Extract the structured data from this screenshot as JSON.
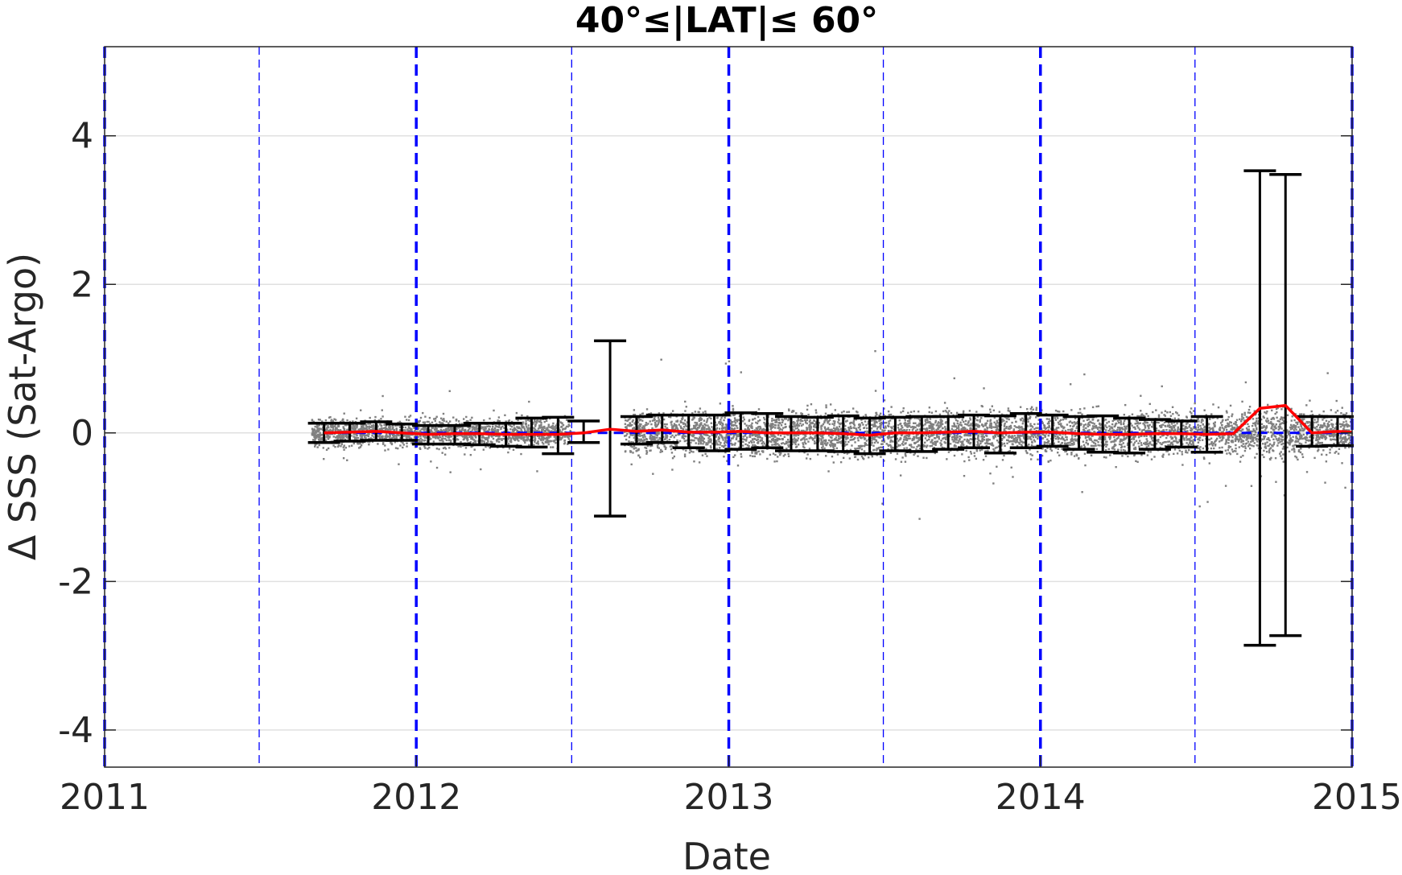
{
  "chart_data": {
    "type": "scatter",
    "title": "40°≤|LAT|≤ 60°",
    "xlabel": "Date",
    "ylabel": "Δ SSS (Sat-Argo)",
    "xlim": [
      "2011-01-01",
      "2015-01-01"
    ],
    "ylim": [
      -4.5,
      5.2
    ],
    "x_ticks": [
      "2011",
      "2012",
      "2013",
      "2014",
      "2015"
    ],
    "y_ticks": [
      -4,
      -2,
      0,
      2,
      4
    ],
    "y_tick_labels": [
      "-4",
      "-2",
      "0",
      "2",
      "4"
    ],
    "grid": "horizontal",
    "colors": {
      "scatter": "#808080",
      "mean_line": "#ff0000",
      "error_bars": "#000000",
      "year_lines": "#0000ff",
      "zero_line": "#0000ff",
      "grid": "#e0e0e0",
      "axes": "#262626"
    },
    "reference_lines": {
      "zero_line_y": 0,
      "year_boundaries": [
        "2011-01-01",
        "2012-01-01",
        "2013-01-01",
        "2014-01-01",
        "2015-01-01"
      ],
      "half_year_lines": [
        "2011-07-01",
        "2012-07-01",
        "2013-07-01",
        "2014-07-01"
      ]
    },
    "scatter_description_ranges": [
      {
        "from": "2011-09-01",
        "to": "2012-06-30",
        "spread": 0.35
      },
      {
        "from": "2012-09-01",
        "to": "2014-09-10",
        "spread": 0.55
      },
      {
        "from": "2014-09-10",
        "to": "2014-11-01",
        "spread": 0.6
      },
      {
        "from": "2014-11-01",
        "to": "2015-01-01",
        "spread": 0.5
      }
    ],
    "series": [
      {
        "kind": "error_bars",
        "points": [
          {
            "x": "2011-09-15",
            "y": 0.0,
            "lo": -0.13,
            "hi": 0.13
          },
          {
            "x": "2011-10-15",
            "y": 0.01,
            "lo": -0.11,
            "hi": 0.13
          },
          {
            "x": "2011-11-15",
            "y": 0.02,
            "lo": -0.1,
            "hi": 0.15
          },
          {
            "x": "2011-12-15",
            "y": 0.0,
            "lo": -0.1,
            "hi": 0.12
          },
          {
            "x": "2012-01-15",
            "y": -0.02,
            "lo": -0.15,
            "hi": 0.1
          },
          {
            "x": "2012-02-15",
            "y": -0.01,
            "lo": -0.15,
            "hi": 0.1
          },
          {
            "x": "2012-03-15",
            "y": -0.01,
            "lo": -0.16,
            "hi": 0.13
          },
          {
            "x": "2012-04-15",
            "y": -0.02,
            "lo": -0.18,
            "hi": 0.13
          },
          {
            "x": "2012-05-15",
            "y": -0.02,
            "lo": -0.19,
            "hi": 0.2
          },
          {
            "x": "2012-06-15",
            "y": -0.02,
            "lo": -0.28,
            "hi": 0.21
          },
          {
            "x": "2012-07-15",
            "y": 0.0,
            "lo": -0.13,
            "hi": 0.16
          },
          {
            "x": "2012-08-15",
            "y": 0.05,
            "lo": -1.12,
            "hi": 1.24
          },
          {
            "x": "2012-09-15",
            "y": 0.02,
            "lo": -0.15,
            "hi": 0.22
          },
          {
            "x": "2012-10-15",
            "y": 0.04,
            "lo": -0.13,
            "hi": 0.24
          },
          {
            "x": "2012-11-15",
            "y": 0.01,
            "lo": -0.2,
            "hi": 0.24
          },
          {
            "x": "2012-12-15",
            "y": 0.01,
            "lo": -0.24,
            "hi": 0.24
          },
          {
            "x": "2013-01-15",
            "y": 0.02,
            "lo": -0.22,
            "hi": 0.27
          },
          {
            "x": "2013-02-15",
            "y": 0.0,
            "lo": -0.2,
            "hi": 0.26
          },
          {
            "x": "2013-03-15",
            "y": 0.0,
            "lo": -0.24,
            "hi": 0.22
          },
          {
            "x": "2013-04-15",
            "y": 0.0,
            "lo": -0.24,
            "hi": 0.21
          },
          {
            "x": "2013-05-15",
            "y": -0.01,
            "lo": -0.25,
            "hi": 0.23
          },
          {
            "x": "2013-06-15",
            "y": -0.03,
            "lo": -0.28,
            "hi": 0.2
          },
          {
            "x": "2013-07-15",
            "y": 0.0,
            "lo": -0.24,
            "hi": 0.21
          },
          {
            "x": "2013-08-15",
            "y": 0.0,
            "lo": -0.25,
            "hi": 0.22
          },
          {
            "x": "2013-09-15",
            "y": 0.01,
            "lo": -0.22,
            "hi": 0.22
          },
          {
            "x": "2013-10-15",
            "y": 0.02,
            "lo": -0.2,
            "hi": 0.24
          },
          {
            "x": "2013-11-15",
            "y": 0.0,
            "lo": -0.27,
            "hi": 0.23
          },
          {
            "x": "2013-12-15",
            "y": 0.01,
            "lo": -0.2,
            "hi": 0.26
          },
          {
            "x": "2014-01-15",
            "y": 0.01,
            "lo": -0.18,
            "hi": 0.24
          },
          {
            "x": "2014-02-15",
            "y": -0.01,
            "lo": -0.22,
            "hi": 0.22
          },
          {
            "x": "2014-03-15",
            "y": -0.02,
            "lo": -0.26,
            "hi": 0.23
          },
          {
            "x": "2014-04-15",
            "y": -0.02,
            "lo": -0.27,
            "hi": 0.2
          },
          {
            "x": "2014-05-15",
            "y": -0.01,
            "lo": -0.22,
            "hi": 0.18
          },
          {
            "x": "2014-06-15",
            "y": -0.01,
            "lo": -0.19,
            "hi": 0.16
          },
          {
            "x": "2014-07-15",
            "y": -0.02,
            "lo": -0.26,
            "hi": 0.22
          },
          {
            "x": "2014-09-15",
            "y": 0.33,
            "lo": -2.86,
            "hi": 3.53
          },
          {
            "x": "2014-10-15",
            "y": 0.37,
            "lo": -2.73,
            "hi": 3.48
          },
          {
            "x": "2014-11-15",
            "y": 0.0,
            "lo": -0.18,
            "hi": 0.22
          },
          {
            "x": "2014-12-15",
            "y": 0.02,
            "lo": -0.17,
            "hi": 0.22
          }
        ]
      },
      {
        "kind": "mean_line",
        "points": [
          {
            "x": "2011-09-15",
            "y": 0.0
          },
          {
            "x": "2011-10-15",
            "y": 0.01
          },
          {
            "x": "2011-11-15",
            "y": 0.02
          },
          {
            "x": "2011-12-15",
            "y": 0.0
          },
          {
            "x": "2012-01-15",
            "y": -0.02
          },
          {
            "x": "2012-02-15",
            "y": -0.01
          },
          {
            "x": "2012-03-15",
            "y": -0.01
          },
          {
            "x": "2012-04-15",
            "y": -0.02
          },
          {
            "x": "2012-05-15",
            "y": -0.02
          },
          {
            "x": "2012-06-15",
            "y": -0.02
          },
          {
            "x": "2012-07-15",
            "y": 0.0
          },
          {
            "x": "2012-08-15",
            "y": 0.05
          },
          {
            "x": "2012-09-15",
            "y": 0.02
          },
          {
            "x": "2012-10-15",
            "y": 0.04
          },
          {
            "x": "2012-11-15",
            "y": 0.01
          },
          {
            "x": "2012-12-15",
            "y": 0.01
          },
          {
            "x": "2013-01-15",
            "y": 0.02
          },
          {
            "x": "2013-02-15",
            "y": 0.0
          },
          {
            "x": "2013-03-15",
            "y": 0.0
          },
          {
            "x": "2013-04-15",
            "y": 0.0
          },
          {
            "x": "2013-05-15",
            "y": -0.01
          },
          {
            "x": "2013-06-15",
            "y": -0.03
          },
          {
            "x": "2013-07-15",
            "y": 0.0
          },
          {
            "x": "2013-08-15",
            "y": 0.0
          },
          {
            "x": "2013-09-15",
            "y": 0.01
          },
          {
            "x": "2013-10-15",
            "y": 0.02
          },
          {
            "x": "2013-11-15",
            "y": 0.0
          },
          {
            "x": "2013-12-15",
            "y": 0.01
          },
          {
            "x": "2014-01-15",
            "y": 0.01
          },
          {
            "x": "2014-02-15",
            "y": -0.01
          },
          {
            "x": "2014-03-15",
            "y": -0.02
          },
          {
            "x": "2014-04-15",
            "y": -0.02
          },
          {
            "x": "2014-05-15",
            "y": -0.01
          },
          {
            "x": "2014-06-15",
            "y": -0.01
          },
          {
            "x": "2014-07-15",
            "y": -0.02
          },
          {
            "x": "2014-08-15",
            "y": -0.01
          },
          {
            "x": "2014-09-15",
            "y": 0.33
          },
          {
            "x": "2014-10-15",
            "y": 0.37
          },
          {
            "x": "2014-11-15",
            "y": 0.0
          },
          {
            "x": "2014-12-15",
            "y": 0.02
          },
          {
            "x": "2015-01-01",
            "y": 0.01
          }
        ]
      }
    ]
  }
}
